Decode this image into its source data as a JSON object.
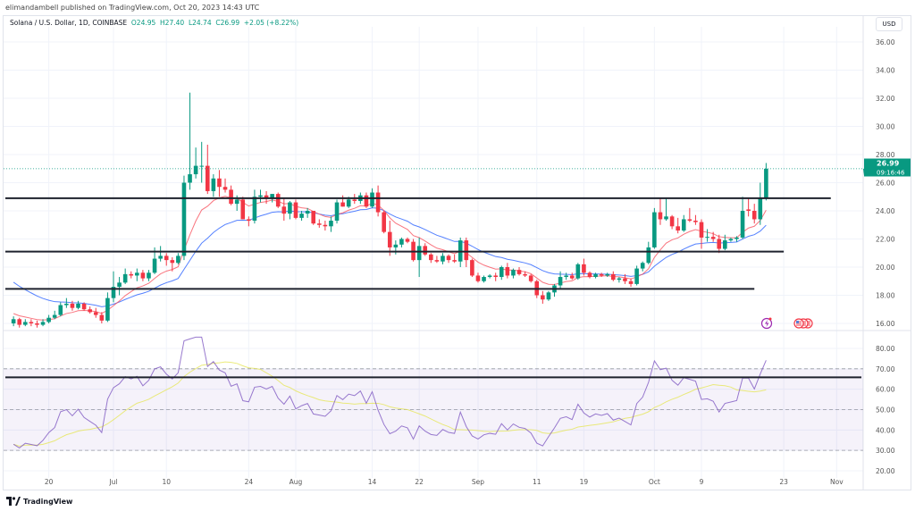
{
  "header": {
    "published": "elimandambell published on TradingView.com, Oct 20, 2023 14:43 UTC",
    "symbol": "Solana / U.S. Dollar, 1D, COINBASE",
    "open": "O24.95",
    "high": "H27.40",
    "low": "L24.74",
    "close": "C26.99",
    "change": "+2.05 (+8.22%)",
    "currency": "USD"
  },
  "footer": {
    "logo_text": "TradingView"
  },
  "colors": {
    "up": "#089981",
    "down": "#f23645",
    "ema_fast": "#f7525f",
    "ema_slow": "#2962ff",
    "rsi": "#7e57c2",
    "rsi_ma": "#e6e65a",
    "levels": "#1e222d"
  },
  "icons": [
    "lightning-event-icon",
    "us-flag-economic-events-icon",
    "tradingview-logo-icon"
  ],
  "chart_data": [
    {
      "type": "candlestick",
      "title": "Solana / U.S. Dollar, 1D, COINBASE",
      "ylabel": "USD",
      "ylim": [
        15.5,
        37
      ],
      "y_ticks": [
        "16.00",
        "18.00",
        "20.00",
        "22.00",
        "24.00",
        "26.00",
        "28.00",
        "30.00",
        "32.00",
        "34.00",
        "36.00"
      ],
      "x_ticks": [
        {
          "date": "2023-06-20",
          "label": "20"
        },
        {
          "date": "2023-07-01",
          "label": "Jul"
        },
        {
          "date": "2023-07-10",
          "label": "10"
        },
        {
          "date": "2023-07-24",
          "label": "24"
        },
        {
          "date": "2023-08-01",
          "label": "Aug"
        },
        {
          "date": "2023-08-14",
          "label": "14"
        },
        {
          "date": "2023-08-22",
          "label": "22"
        },
        {
          "date": "2023-09-01",
          "label": "Sep"
        },
        {
          "date": "2023-09-11",
          "label": "11"
        },
        {
          "date": "2023-09-19",
          "label": "19"
        },
        {
          "date": "2023-10-01",
          "label": "Oct"
        },
        {
          "date": "2023-10-09",
          "label": "9"
        },
        {
          "date": "2023-10-23",
          "label": "23"
        },
        {
          "date": "2023-11-01",
          "label": "Nov"
        }
      ],
      "last_price": {
        "value": 26.99,
        "label": "26.99",
        "countdown": "09:16:46"
      },
      "horizontal_levels": [
        {
          "price": 24.9,
          "until": "2023-10-31"
        },
        {
          "price": 21.1,
          "until": "2023-10-23"
        },
        {
          "price": 18.45,
          "until": "2023-10-18"
        }
      ],
      "overlays": [
        "EMA fast (red)",
        "EMA slow (blue)"
      ],
      "grid": true,
      "candles_fields": [
        "date",
        "open",
        "high",
        "low",
        "close"
      ],
      "candles": [
        [
          "2023-06-14",
          16.0,
          16.5,
          15.8,
          16.3
        ],
        [
          "2023-06-15",
          16.3,
          16.4,
          15.7,
          15.9
        ],
        [
          "2023-06-16",
          15.9,
          16.3,
          15.8,
          16.1
        ],
        [
          "2023-06-17",
          16.1,
          16.3,
          15.8,
          16.0
        ],
        [
          "2023-06-18",
          16.0,
          16.2,
          15.7,
          15.9
        ],
        [
          "2023-06-19",
          15.9,
          16.3,
          15.8,
          16.1
        ],
        [
          "2023-06-20",
          16.1,
          16.6,
          16.0,
          16.4
        ],
        [
          "2023-06-21",
          16.4,
          16.9,
          16.3,
          16.6
        ],
        [
          "2023-06-22",
          16.6,
          17.5,
          16.5,
          17.3
        ],
        [
          "2023-06-23",
          17.3,
          17.8,
          17.1,
          17.4
        ],
        [
          "2023-06-24",
          17.4,
          17.6,
          16.9,
          17.1
        ],
        [
          "2023-06-25",
          17.1,
          17.6,
          17.0,
          17.4
        ],
        [
          "2023-06-26",
          17.4,
          17.5,
          16.9,
          17.0
        ],
        [
          "2023-06-27",
          17.0,
          17.2,
          16.7,
          16.8
        ],
        [
          "2023-06-28",
          16.8,
          17.1,
          16.4,
          16.6
        ],
        [
          "2023-06-29",
          16.6,
          16.8,
          16.0,
          16.2
        ],
        [
          "2023-06-30",
          16.2,
          18.2,
          16.1,
          17.8
        ],
        [
          "2023-07-01",
          17.8,
          19.7,
          17.5,
          18.6
        ],
        [
          "2023-07-02",
          18.6,
          19.3,
          18.0,
          18.9
        ],
        [
          "2023-07-03",
          18.9,
          19.9,
          18.8,
          19.5
        ],
        [
          "2023-07-04",
          19.5,
          19.7,
          19.2,
          19.4
        ],
        [
          "2023-07-05",
          19.4,
          19.9,
          19.0,
          19.6
        ],
        [
          "2023-07-06",
          19.6,
          19.8,
          19.0,
          19.2
        ],
        [
          "2023-07-07",
          19.2,
          19.8,
          19.0,
          19.6
        ],
        [
          "2023-07-08",
          19.6,
          21.4,
          19.5,
          20.6
        ],
        [
          "2023-07-09",
          20.6,
          21.5,
          20.4,
          20.8
        ],
        [
          "2023-07-10",
          20.8,
          21.0,
          20.1,
          20.5
        ],
        [
          "2023-07-11",
          20.5,
          20.7,
          19.7,
          20.3
        ],
        [
          "2023-07-12",
          20.3,
          21.0,
          20.2,
          20.8
        ],
        [
          "2023-07-13",
          20.8,
          26.5,
          20.5,
          26.0
        ],
        [
          "2023-07-14",
          26.0,
          32.4,
          25.5,
          26.6
        ],
        [
          "2023-07-15",
          26.6,
          28.5,
          26.3,
          27.2
        ],
        [
          "2023-07-16",
          27.2,
          28.9,
          26.0,
          27.2
        ],
        [
          "2023-07-17",
          27.2,
          28.7,
          25.2,
          25.4
        ],
        [
          "2023-07-18",
          25.4,
          26.6,
          25.0,
          26.3
        ],
        [
          "2023-07-19",
          26.3,
          26.9,
          25.0,
          25.7
        ],
        [
          "2023-07-20",
          25.7,
          26.3,
          25.3,
          25.5
        ],
        [
          "2023-07-21",
          25.5,
          25.8,
          24.4,
          24.5
        ],
        [
          "2023-07-22",
          24.5,
          25.1,
          24.0,
          24.8
        ],
        [
          "2023-07-23",
          24.8,
          25.0,
          23.4,
          23.4
        ],
        [
          "2023-07-24",
          23.4,
          23.6,
          22.9,
          23.3
        ],
        [
          "2023-07-25",
          23.3,
          25.5,
          23.1,
          25.0
        ],
        [
          "2023-07-26",
          25.0,
          25.5,
          24.6,
          25.1
        ],
        [
          "2023-07-27",
          25.1,
          25.4,
          24.5,
          24.9
        ],
        [
          "2023-07-28",
          24.9,
          25.2,
          24.6,
          25.2
        ],
        [
          "2023-07-29",
          25.2,
          25.3,
          24.2,
          24.3
        ],
        [
          "2023-07-30",
          24.3,
          24.9,
          23.3,
          23.8
        ],
        [
          "2023-07-31",
          23.8,
          24.7,
          23.4,
          24.6
        ],
        [
          "2023-08-01",
          24.6,
          24.8,
          23.4,
          23.5
        ],
        [
          "2023-08-02",
          23.5,
          24.0,
          23.3,
          23.8
        ],
        [
          "2023-08-03",
          23.8,
          24.2,
          23.5,
          24.0
        ],
        [
          "2023-08-04",
          24.0,
          24.0,
          23.0,
          23.1
        ],
        [
          "2023-08-05",
          23.1,
          23.4,
          22.8,
          23.0
        ],
        [
          "2023-08-06",
          23.0,
          23.3,
          22.6,
          22.9
        ],
        [
          "2023-08-07",
          22.9,
          23.6,
          22.5,
          23.3
        ],
        [
          "2023-08-08",
          23.3,
          24.8,
          23.1,
          24.6
        ],
        [
          "2023-08-09",
          24.6,
          25.1,
          24.3,
          24.3
        ],
        [
          "2023-08-10",
          24.3,
          25.0,
          24.2,
          24.8
        ],
        [
          "2023-08-11",
          24.8,
          25.2,
          24.5,
          24.7
        ],
        [
          "2023-08-12",
          24.7,
          25.3,
          24.5,
          25.1
        ],
        [
          "2023-08-13",
          25.1,
          25.3,
          24.2,
          24.3
        ],
        [
          "2023-08-14",
          24.3,
          25.6,
          24.2,
          25.3
        ],
        [
          "2023-08-15",
          25.3,
          25.8,
          23.6,
          23.9
        ],
        [
          "2023-08-16",
          23.9,
          24.0,
          22.4,
          22.5
        ],
        [
          "2023-08-17",
          22.5,
          23.3,
          20.8,
          21.4
        ],
        [
          "2023-08-18",
          21.4,
          21.9,
          20.9,
          21.6
        ],
        [
          "2023-08-19",
          21.6,
          22.1,
          21.4,
          22.0
        ],
        [
          "2023-08-20",
          22.0,
          22.1,
          21.7,
          21.8
        ],
        [
          "2023-08-21",
          21.8,
          22.0,
          20.4,
          20.5
        ],
        [
          "2023-08-22",
          20.5,
          22.1,
          19.3,
          21.5
        ],
        [
          "2023-08-23",
          21.5,
          21.7,
          20.8,
          20.9
        ],
        [
          "2023-08-24",
          20.9,
          21.0,
          20.3,
          20.5
        ],
        [
          "2023-08-25",
          20.5,
          20.8,
          20.3,
          20.4
        ],
        [
          "2023-08-26",
          20.4,
          21.0,
          20.2,
          20.8
        ],
        [
          "2023-08-27",
          20.8,
          20.9,
          20.3,
          20.5
        ],
        [
          "2023-08-28",
          20.5,
          20.9,
          20.3,
          20.4
        ],
        [
          "2023-08-29",
          20.4,
          22.1,
          20.0,
          21.9
        ],
        [
          "2023-08-30",
          21.9,
          22.1,
          20.0,
          20.5
        ],
        [
          "2023-08-31",
          20.5,
          20.6,
          19.3,
          19.4
        ],
        [
          "2023-09-01",
          19.4,
          19.6,
          18.9,
          19.0
        ],
        [
          "2023-09-02",
          19.0,
          19.4,
          18.9,
          19.3
        ],
        [
          "2023-09-03",
          19.3,
          19.5,
          19.2,
          19.4
        ],
        [
          "2023-09-04",
          19.4,
          19.6,
          19.0,
          19.3
        ],
        [
          "2023-09-05",
          19.3,
          20.1,
          19.1,
          20.0
        ],
        [
          "2023-09-06",
          20.0,
          20.3,
          19.2,
          19.4
        ],
        [
          "2023-09-07",
          19.4,
          19.9,
          19.2,
          19.8
        ],
        [
          "2023-09-08",
          19.8,
          20.0,
          19.4,
          19.5
        ],
        [
          "2023-09-09",
          19.5,
          19.7,
          19.3,
          19.4
        ],
        [
          "2023-09-10",
          19.4,
          19.5,
          18.9,
          19.0
        ],
        [
          "2023-09-11",
          19.0,
          19.1,
          17.8,
          18.0
        ],
        [
          "2023-09-12",
          18.0,
          18.3,
          17.4,
          17.7
        ],
        [
          "2023-09-13",
          17.7,
          18.3,
          17.6,
          18.2
        ],
        [
          "2023-09-14",
          18.2,
          18.8,
          17.9,
          18.7
        ],
        [
          "2023-09-15",
          18.7,
          19.7,
          18.5,
          19.3
        ],
        [
          "2023-09-16",
          19.3,
          19.6,
          19.1,
          19.4
        ],
        [
          "2023-09-17",
          19.4,
          19.6,
          19.1,
          19.2
        ],
        [
          "2023-09-18",
          19.2,
          20.3,
          19.1,
          20.2
        ],
        [
          "2023-09-19",
          20.2,
          20.6,
          19.4,
          19.6
        ],
        [
          "2023-09-20",
          19.6,
          19.7,
          19.2,
          19.3
        ],
        [
          "2023-09-21",
          19.3,
          19.6,
          19.2,
          19.5
        ],
        [
          "2023-09-22",
          19.5,
          19.6,
          19.3,
          19.4
        ],
        [
          "2023-09-23",
          19.4,
          19.6,
          19.3,
          19.5
        ],
        [
          "2023-09-24",
          19.5,
          19.7,
          19.0,
          19.1
        ],
        [
          "2023-09-25",
          19.1,
          19.3,
          18.9,
          19.2
        ],
        [
          "2023-09-26",
          19.2,
          19.5,
          18.8,
          19.0
        ],
        [
          "2023-09-27",
          19.0,
          19.2,
          18.6,
          18.8
        ],
        [
          "2023-09-28",
          18.8,
          20.1,
          18.7,
          19.9
        ],
        [
          "2023-09-29",
          19.9,
          20.4,
          19.7,
          20.3
        ],
        [
          "2023-09-30",
          20.3,
          21.8,
          20.2,
          21.4
        ],
        [
          "2023-10-01",
          21.4,
          24.2,
          21.3,
          23.9
        ],
        [
          "2023-10-02",
          23.9,
          24.9,
          23.0,
          23.4
        ],
        [
          "2023-10-03",
          23.4,
          24.9,
          23.3,
          23.6
        ],
        [
          "2023-10-04",
          23.6,
          23.7,
          22.7,
          22.9
        ],
        [
          "2023-10-05",
          22.9,
          23.5,
          22.4,
          22.6
        ],
        [
          "2023-10-06",
          22.6,
          23.7,
          22.5,
          23.4
        ],
        [
          "2023-10-07",
          23.4,
          24.2,
          23.2,
          23.3
        ],
        [
          "2023-10-08",
          23.3,
          23.7,
          23.0,
          23.2
        ],
        [
          "2023-10-09",
          23.2,
          23.4,
          21.3,
          22.1
        ],
        [
          "2023-10-10",
          22.1,
          22.7,
          21.8,
          22.15
        ],
        [
          "2023-10-11",
          22.15,
          22.5,
          21.8,
          22.0
        ],
        [
          "2023-10-12",
          22.0,
          22.3,
          21.0,
          21.3
        ],
        [
          "2023-10-13",
          21.3,
          22.3,
          21.2,
          21.9
        ],
        [
          "2023-10-14",
          21.9,
          22.1,
          21.8,
          22.0
        ],
        [
          "2023-10-15",
          22.0,
          22.2,
          21.8,
          22.1
        ],
        [
          "2023-10-16",
          22.1,
          25.0,
          22.0,
          24.0
        ],
        [
          "2023-10-17",
          24.1,
          24.9,
          23.6,
          24.0
        ],
        [
          "2023-10-18",
          24.0,
          24.5,
          23.1,
          23.4
        ],
        [
          "2023-10-19",
          23.4,
          26.0,
          23.0,
          24.95
        ],
        [
          "2023-10-20",
          24.95,
          27.4,
          24.74,
          26.99
        ]
      ]
    },
    {
      "type": "line",
      "title": "RSI",
      "ylim": [
        16,
        86
      ],
      "y_ticks": [
        "20.00",
        "30.00",
        "40.00",
        "50.00",
        "60.00",
        "70.00",
        "80.00"
      ],
      "band": [
        30,
        70
      ],
      "dashed_levels": [
        30,
        50,
        70
      ],
      "horizontal_levels": [
        {
          "value": 65.8
        }
      ],
      "series": [
        "RSI (purple)",
        "RSI moving average (yellow)"
      ]
    }
  ]
}
